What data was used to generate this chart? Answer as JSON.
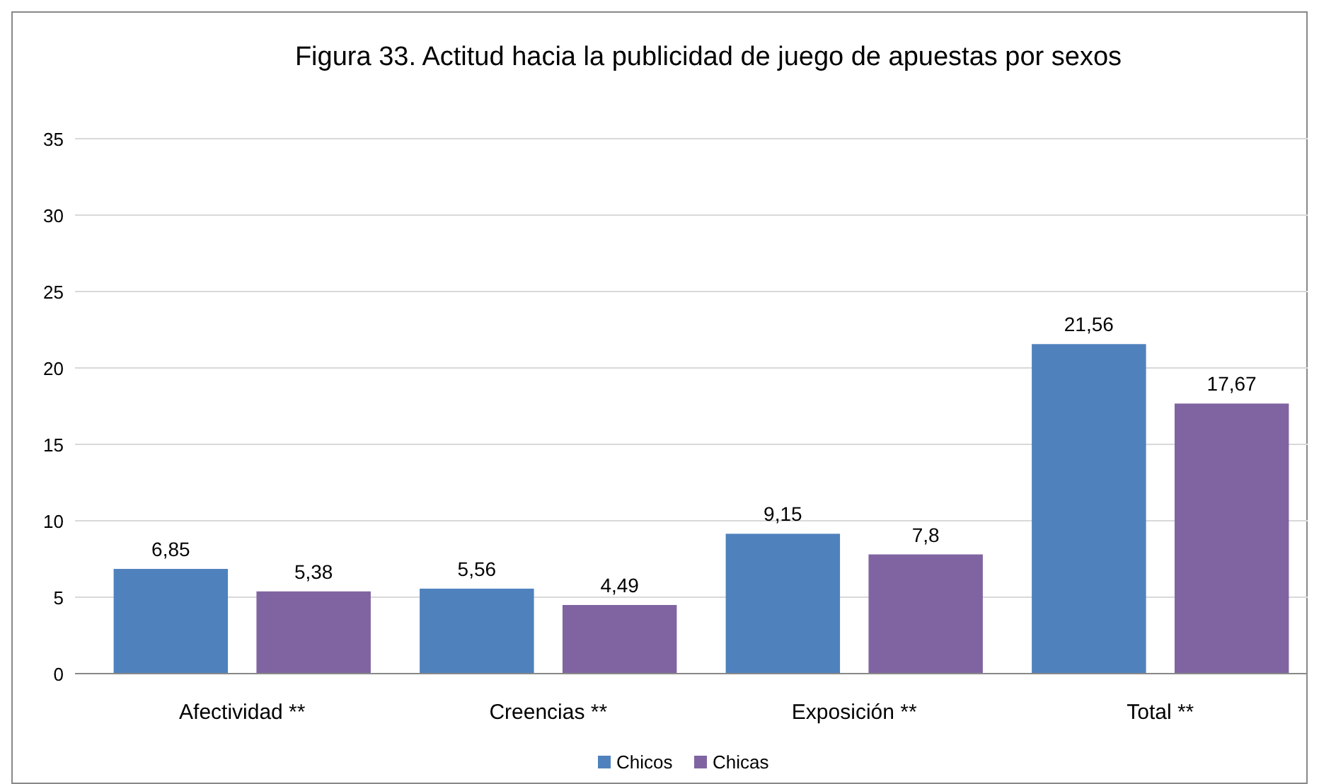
{
  "chart_data": {
    "type": "bar",
    "title": "Figura 33. Actitud hacia la publicidad de juego de apuestas por sexos",
    "categories": [
      "Afectividad **",
      "Creencias **",
      "Exposición **",
      "Total **"
    ],
    "series": [
      {
        "name": "Chicos",
        "color": "#4f81bd",
        "values": [
          6.85,
          5.56,
          9.15,
          21.56
        ],
        "value_labels": [
          "6,85",
          "5,56",
          "9,15",
          "21,56"
        ]
      },
      {
        "name": "Chicas",
        "color": "#8064a2",
        "values": [
          5.38,
          4.49,
          7.8,
          17.67
        ],
        "value_labels": [
          "5,38",
          "4,49",
          "7,8",
          "17,67"
        ]
      }
    ],
    "ylim": [
      0,
      35
    ],
    "yticks": [
      0,
      5,
      10,
      15,
      20,
      25,
      30,
      35
    ],
    "grid": "y",
    "legend": "bottom"
  }
}
